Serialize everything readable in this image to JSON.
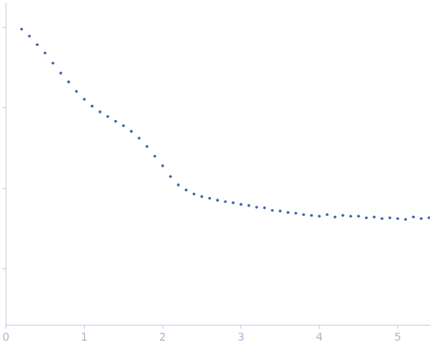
{
  "chart_data": {
    "type": "scatter",
    "x": [
      0.2,
      0.3,
      0.4,
      0.5,
      0.6,
      0.7,
      0.8,
      0.9,
      1.0,
      1.1,
      1.2,
      1.3,
      1.4,
      1.5,
      1.6,
      1.7,
      1.8,
      1.9,
      2.0,
      2.1,
      2.2,
      2.3,
      2.4,
      2.5,
      2.6,
      2.7,
      2.8,
      2.9,
      3.0,
      3.1,
      3.2,
      3.3,
      3.4,
      3.5,
      3.6,
      3.7,
      3.8,
      3.9,
      4.0,
      4.1,
      4.2,
      4.3,
      4.4,
      4.5,
      4.6,
      4.7,
      4.8,
      4.9,
      5.0,
      5.1,
      5.2,
      5.3,
      5.4
    ],
    "values": [
      0.95,
      0.78,
      0.61,
      0.48,
      0.36,
      0.27,
      0.21,
      0.16,
      0.128,
      0.105,
      0.089,
      0.078,
      0.068,
      0.06,
      0.051,
      0.042,
      0.033,
      0.025,
      0.019,
      0.014,
      0.011,
      0.0095,
      0.0085,
      0.0079,
      0.0075,
      0.0071,
      0.0068,
      0.0066,
      0.0063,
      0.0061,
      0.0058,
      0.0057,
      0.0053,
      0.0052,
      0.005,
      0.0049,
      0.0047,
      0.0046,
      0.0045,
      0.0047,
      0.0044,
      0.0046,
      0.0045,
      0.0045,
      0.0043,
      0.0044,
      0.0042,
      0.0043,
      0.0042,
      0.0041,
      0.0044,
      0.0042,
      0.0043
    ],
    "color": "#3a66b0",
    "marker": "circle",
    "log": "y",
    "xlim": [
      0,
      5.41
    ],
    "xticks": [
      0,
      1,
      2,
      3,
      4,
      5
    ],
    "ylim": [
      0.0002,
      2
    ],
    "yticks": [
      0.001,
      0.01,
      0.1,
      1
    ],
    "grid": false,
    "tick_labels": "x"
  }
}
